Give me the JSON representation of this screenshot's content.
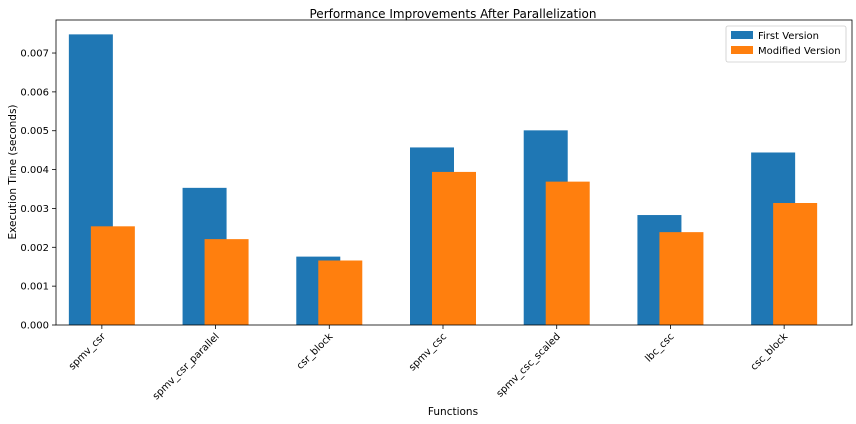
{
  "chart_data": {
    "type": "bar",
    "title": "Performance Improvements After Parallelization",
    "xlabel": "Functions",
    "ylabel": "Execution Time (seconds)",
    "categories": [
      "spmv_csr",
      "spmv_csr_parallel",
      "csr_block",
      "spmv_csc",
      "spmv_csc_scaled",
      "lbc_csc",
      "csc_block"
    ],
    "series": [
      {
        "name": "First Version",
        "color": "#1f77b4",
        "values": [
          0.00748,
          0.00353,
          0.00176,
          0.00457,
          0.00501,
          0.00283,
          0.00444
        ]
      },
      {
        "name": "Modified Version",
        "color": "#ff7f0e",
        "values": [
          0.00254,
          0.00221,
          0.00166,
          0.00394,
          0.00369,
          0.00239,
          0.00314
        ]
      }
    ],
    "ylim": [
      0,
      0.00785
    ],
    "yticks": [
      "0.000",
      "0.001",
      "0.002",
      "0.003",
      "0.004",
      "0.005",
      "0.006",
      "0.007"
    ],
    "legend": "top-right",
    "grid": false
  }
}
